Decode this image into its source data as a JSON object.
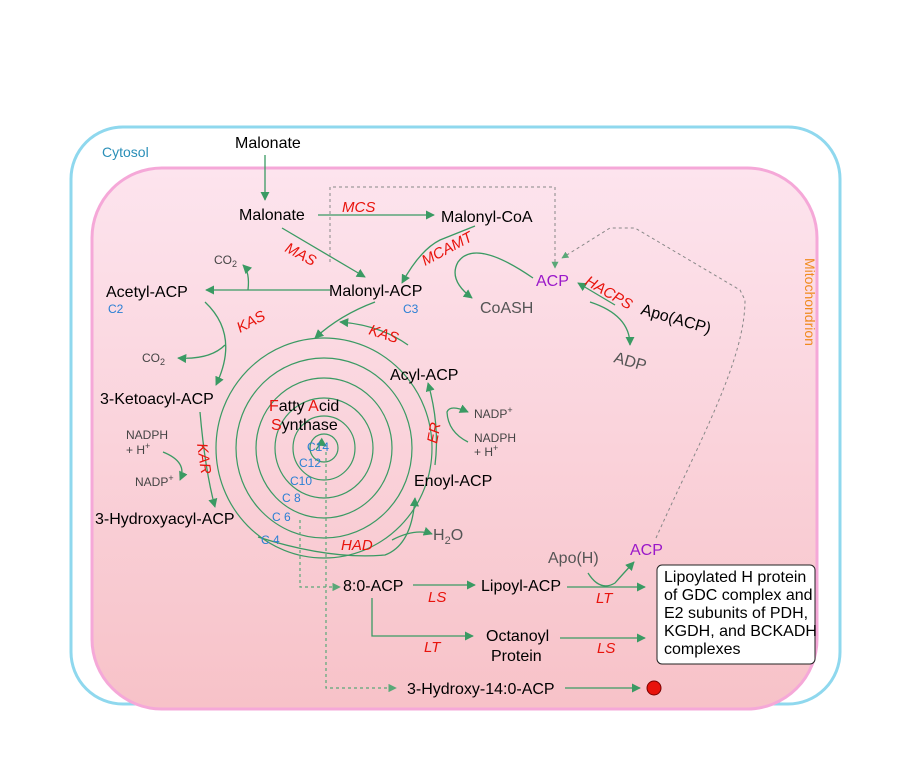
{
  "regions": {
    "cytosol": "Cytosol",
    "mitochondrion": "Mitochondrion"
  },
  "molecules": {
    "malonate_cyto": "Malonate",
    "malonate_mito": "Malonate",
    "malonyl_coa": "Malonyl-CoA",
    "malonyl_acp": "Malonyl-ACP",
    "acetyl_acp": "Acetyl-ACP",
    "ketoacyl_acp": "3-Ketoacyl-ACP",
    "hydroxyacyl_acp": "3-Hydroxyacyl-ACP",
    "enoyl_acp": "Enoyl-ACP",
    "acyl_acp": "Acyl-ACP",
    "acp_top": "ACP",
    "acp_bottom": "ACP",
    "coash": "CoASH",
    "apo_acp": "Apo(ACP)",
    "adp": "ADP",
    "apo_h": "Apo(H)",
    "c8_acp": "8:0-ACP",
    "lipoyl_acp": "Lipoyl-ACP",
    "octanoyl_protein_1": "Octanoyl",
    "octanoyl_protein_2": "Protein",
    "hydroxy14_acp": "3-Hydroxy-14:0-ACP",
    "h2o_main": "H",
    "h2o_sub": "2",
    "h2o_end": "O"
  },
  "cofactors": {
    "co2_top_main": "CO",
    "co2_top_sub": "2",
    "co2_bottom_main": "CO",
    "co2_bottom_sub": "2",
    "nadph_left_1": "NADPH",
    "nadph_left_2": "+ H",
    "nadph_left_sup": "+",
    "nadp_left": "NADP",
    "nadp_left_sup": "+",
    "nadp_right": "NADP",
    "nadp_right_sup": "+",
    "nadph_right_1": "NADPH",
    "nadph_right_2": "+ H",
    "nadph_right_sup": "+"
  },
  "carbon_labels": {
    "c2": "C2",
    "c3": "C3",
    "c4": "C 4",
    "c6": "C 6",
    "c8": "C 8",
    "c10": "C10",
    "c12": "C12",
    "c14": "C14"
  },
  "enzymes": {
    "mcs": "MCS",
    "mas": "MAS",
    "mcamt": "MCAMT",
    "hacps": "HACPS",
    "kas_left": "KAS",
    "kas_right": "KAS",
    "kar": "KAR",
    "er": "ER",
    "had": "HAD",
    "ls_1": "LS",
    "lt_1": "LT",
    "lt_2": "LT",
    "ls_2": "LS"
  },
  "fas": {
    "f_letter": "F",
    "f_rest": "atty ",
    "a_letter": "A",
    "a_rest": "cid",
    "s_letter": "S",
    "s_rest": "ynthase"
  },
  "outcome_box": {
    "line1": "Lipoylated H protein",
    "line2": "of GDC complex and",
    "line3": "E2 subunits of PDH,",
    "line4": "KGDH, and BCKADH",
    "line5": "complexes"
  },
  "colors": {
    "cytosol_border": "#8fd8ee",
    "mito_border": "#f5a8d8",
    "mito_fill_top": "#fde4ee",
    "mito_fill_bottom": "#f7c2c8",
    "arrow": "#3a9a63",
    "enzyme": "#e8130c",
    "carbon": "#2a7fd4",
    "acp": "#9b18c9",
    "terminal_dot": "#e8130c"
  }
}
